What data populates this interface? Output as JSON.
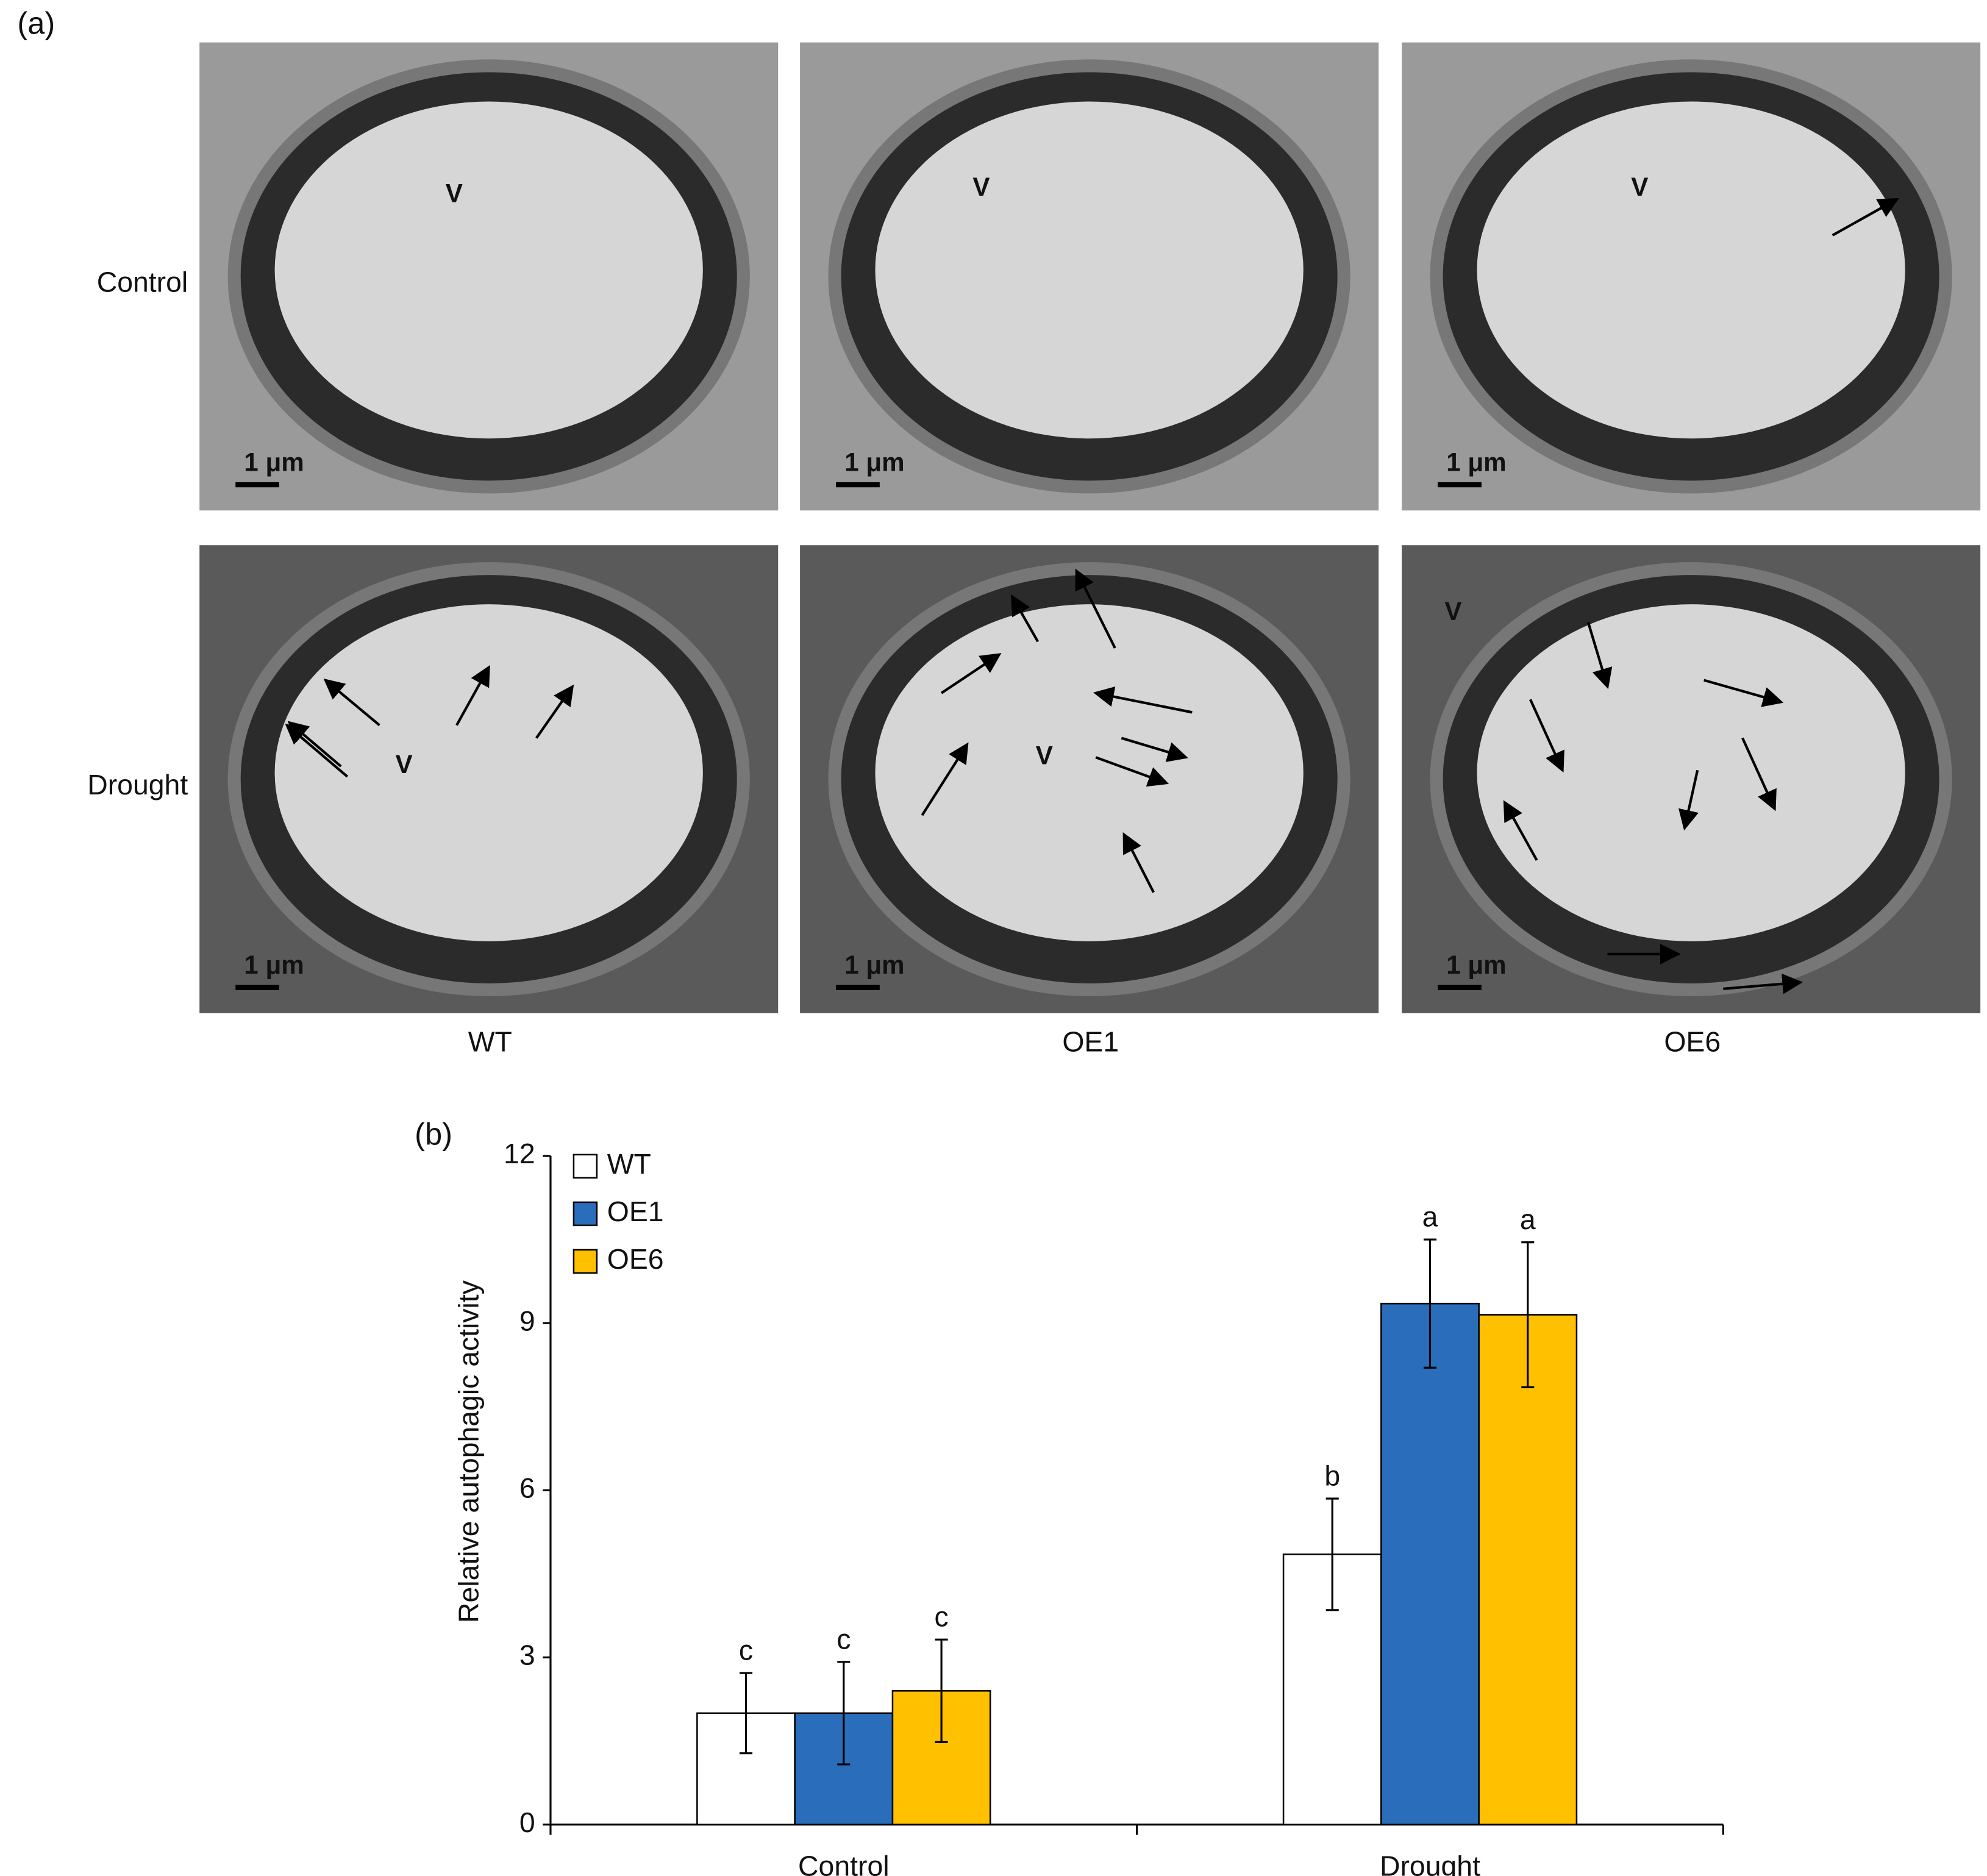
{
  "panel_a": {
    "label": "(a)",
    "rows": [
      "Control",
      "Drought"
    ],
    "columns": [
      "WT",
      "OE1",
      "OE6"
    ],
    "vacuole_label": "V",
    "scale_bar": "1 μm"
  },
  "chart_data": {
    "type": "bar",
    "panel_label": "(b)",
    "ylabel": "Relative autophagic activity",
    "categories": [
      "Control",
      "Drought"
    ],
    "series": [
      {
        "name": "WT",
        "color": "#ffffff",
        "values": [
          2.0,
          4.85
        ],
        "errors": [
          0.72,
          1.0
        ],
        "letters": [
          "c",
          "b"
        ]
      },
      {
        "name": "OE1",
        "color": "#2a6ebb",
        "values": [
          2.0,
          9.35
        ],
        "errors": [
          0.92,
          1.15
        ],
        "letters": [
          "c",
          "a"
        ]
      },
      {
        "name": "OE6",
        "color": "#ffc000",
        "values": [
          2.4,
          9.15
        ],
        "errors": [
          0.92,
          1.3
        ],
        "letters": [
          "c",
          "a"
        ]
      }
    ],
    "ylim": [
      0,
      12
    ],
    "yticks": [
      0,
      3,
      6,
      9,
      12
    ],
    "legend": "upper left"
  }
}
